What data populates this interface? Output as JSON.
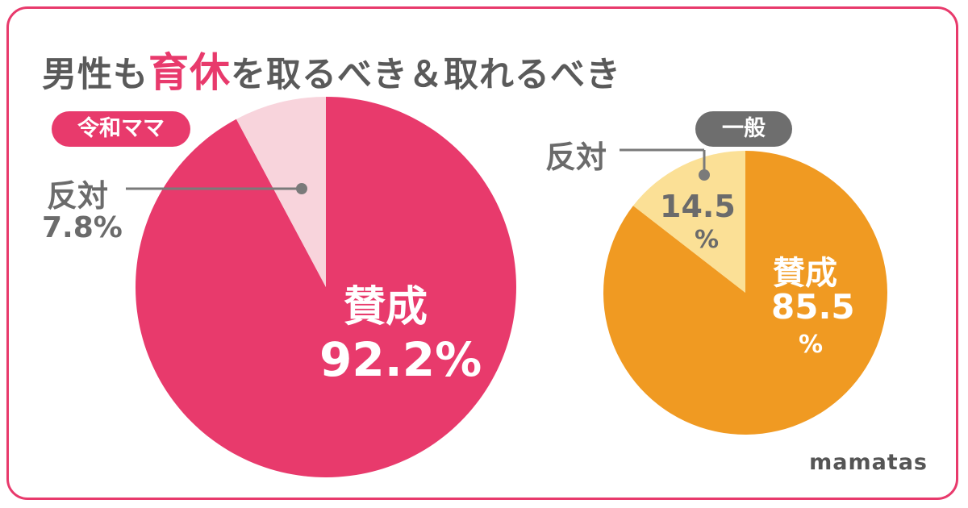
{
  "title": {
    "part1": "男性も",
    "highlight": "育休",
    "part2": "を取るべき＆取れるべき"
  },
  "chart_data": [
    {
      "type": "pie",
      "badge": "令和ママ",
      "slices": [
        {
          "label": "賛成",
          "value": 92.2,
          "display": "92.2%",
          "color": "#e83a6c"
        },
        {
          "label": "反対",
          "value": 7.8,
          "display": "7.8%",
          "color": "#f8d4dc"
        }
      ]
    },
    {
      "type": "pie",
      "badge": "一般",
      "slices": [
        {
          "label": "賛成",
          "value": 85.5,
          "display_value": "85.5",
          "display_unit": "%",
          "color": "#f09a22"
        },
        {
          "label": "反対",
          "value": 14.5,
          "display_value": "14.5",
          "display_unit": "%",
          "color": "#fbe096"
        }
      ]
    }
  ],
  "colors": {
    "accent": "#e83a6c",
    "leader_line": "#7a7a7a",
    "badge_general": "#6e6e6e"
  },
  "brand": "mamatas"
}
